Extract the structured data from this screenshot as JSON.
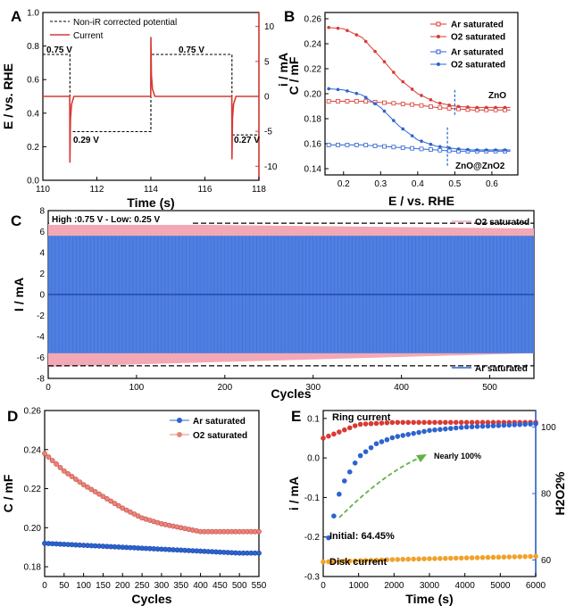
{
  "chart_data": [
    {
      "panel": "A",
      "type": "line",
      "xlabel": "Time (s)",
      "ylabel_left": "E / vs. RHE",
      "ylabel_right": "i / mA",
      "xlim": [
        110,
        118
      ],
      "ylim_left": [
        0,
        1.0
      ],
      "ylim_right": [
        -12,
        12
      ],
      "xticks": [
        110,
        112,
        114,
        116,
        118
      ],
      "yticks_left": [
        0.0,
        0.2,
        0.4,
        0.6,
        0.8,
        1.0
      ],
      "yticks_right": [
        -10,
        -5,
        0,
        5,
        10
      ],
      "legend": [
        "Non-iR corrected potential",
        "Current"
      ],
      "annotations": [
        "0.75 V",
        "0.29 V",
        "0.75 V",
        "0.27 V"
      ],
      "potential": {
        "x": [
          110,
          111,
          111,
          114,
          114,
          117,
          117,
          118
        ],
        "y": [
          0.75,
          0.75,
          0.29,
          0.29,
          0.75,
          0.75,
          0.27,
          0.27
        ]
      },
      "current_baseline_mA": 0,
      "current_spikes": [
        {
          "t": 111,
          "value": -9.5
        },
        {
          "t": 114,
          "value": 8.5
        },
        {
          "t": 117,
          "value": -9.0
        }
      ]
    },
    {
      "panel": "B",
      "type": "line",
      "xlabel": "E / vs. RHE",
      "ylabel": "C / mF",
      "xlim": [
        0.15,
        0.67
      ],
      "ylim": [
        0.135,
        0.265
      ],
      "xticks": [
        0.2,
        0.3,
        0.4,
        0.5,
        0.6
      ],
      "yticks": [
        0.14,
        0.16,
        0.18,
        0.2,
        0.22,
        0.24,
        0.26
      ],
      "labels": [
        "ZnO",
        "ZnO@ZnO2"
      ],
      "series": [
        {
          "name": "Ar saturated",
          "group": "ZnO",
          "x": [
            0.16,
            0.2,
            0.25,
            0.3,
            0.35,
            0.4,
            0.45,
            0.5,
            0.55,
            0.6,
            0.65
          ],
          "y": [
            0.194,
            0.194,
            0.194,
            0.193,
            0.192,
            0.191,
            0.189,
            0.188,
            0.187,
            0.187,
            0.187
          ]
        },
        {
          "name": "O2 saturated",
          "group": "ZnO",
          "x": [
            0.16,
            0.2,
            0.25,
            0.3,
            0.35,
            0.4,
            0.45,
            0.5,
            0.55,
            0.6,
            0.65
          ],
          "y": [
            0.253,
            0.252,
            0.245,
            0.229,
            0.212,
            0.2,
            0.193,
            0.19,
            0.189,
            0.189,
            0.189
          ]
        },
        {
          "name": "Ar saturated",
          "group": "ZnO@ZnO2",
          "x": [
            0.16,
            0.2,
            0.25,
            0.3,
            0.35,
            0.4,
            0.45,
            0.5,
            0.55,
            0.6,
            0.65
          ],
          "y": [
            0.159,
            0.159,
            0.159,
            0.158,
            0.157,
            0.156,
            0.155,
            0.154,
            0.154,
            0.154,
            0.154
          ]
        },
        {
          "name": "O2 saturated",
          "group": "ZnO@ZnO2",
          "x": [
            0.16,
            0.2,
            0.25,
            0.3,
            0.35,
            0.4,
            0.45,
            0.5,
            0.55,
            0.6,
            0.65
          ],
          "y": [
            0.204,
            0.203,
            0.199,
            0.189,
            0.174,
            0.163,
            0.158,
            0.156,
            0.155,
            0.155,
            0.155
          ]
        }
      ]
    },
    {
      "panel": "C",
      "type": "area",
      "xlabel": "Cycles",
      "ylabel": "I / mA",
      "xlim": [
        0,
        550
      ],
      "ylim": [
        -8,
        8
      ],
      "xticks": [
        0,
        100,
        200,
        300,
        400,
        500
      ],
      "yticks": [
        -8,
        -6,
        -4,
        -2,
        0,
        2,
        4,
        6,
        8
      ],
      "annotation": "High :0.75 V  -  Low: 0.25 V",
      "reference_lines": [
        6.8,
        -6.8
      ],
      "series": [
        {
          "name": "O2 saturated",
          "upper_start": 6.8,
          "upper_end": 6.3,
          "lower_start": -6.9,
          "lower_end": -5.6
        },
        {
          "name": "Ar saturated",
          "upper_start": 5.6,
          "upper_end": 5.6,
          "lower_start": -5.6,
          "lower_end": -5.6
        }
      ]
    },
    {
      "panel": "D",
      "type": "line",
      "xlabel": "Cycles",
      "ylabel": "C / mF",
      "xlim": [
        0,
        550
      ],
      "ylim": [
        0.175,
        0.26
      ],
      "xticks": [
        0,
        50,
        100,
        150,
        200,
        250,
        300,
        350,
        400,
        450,
        500,
        550
      ],
      "yticks": [
        0.18,
        0.2,
        0.22,
        0.24,
        0.26
      ],
      "series": [
        {
          "name": "Ar saturated",
          "x": [
            0,
            100,
            200,
            300,
            400,
            500,
            550
          ],
          "y": [
            0.192,
            0.191,
            0.19,
            0.189,
            0.188,
            0.187,
            0.187
          ]
        },
        {
          "name": "O2 saturated",
          "x": [
            0,
            50,
            100,
            150,
            200,
            250,
            300,
            350,
            400,
            450,
            500,
            550
          ],
          "y": [
            0.238,
            0.229,
            0.222,
            0.216,
            0.21,
            0.205,
            0.202,
            0.2,
            0.198,
            0.198,
            0.198,
            0.198
          ]
        }
      ]
    },
    {
      "panel": "E",
      "type": "scatter",
      "xlabel": "Time (s)",
      "ylabel_left": "i / mA",
      "ylabel_right": "H2O2%",
      "xlim": [
        0,
        6000
      ],
      "ylim_left": [
        -0.3,
        0.12
      ],
      "ylim_right": [
        55,
        105
      ],
      "xticks": [
        0,
        1000,
        2000,
        3000,
        4000,
        5000,
        6000
      ],
      "yticks_left": [
        -0.3,
        -0.2,
        -0.1,
        0.0,
        0.1
      ],
      "yticks_right": [
        60,
        80,
        100
      ],
      "labels": [
        "Ring current",
        "Disk current",
        "Nearly 100%",
        "Initial: 64.45%"
      ],
      "series": [
        {
          "name": "Ring current",
          "axis": "left",
          "x": [
            0,
            1000,
            2000,
            3000,
            4000,
            5000,
            6000
          ],
          "y": [
            0.05,
            0.085,
            0.09,
            0.09,
            0.09,
            0.09,
            0.09
          ]
        },
        {
          "name": "Disk current",
          "axis": "left",
          "x": [
            0,
            1000,
            2000,
            3000,
            4000,
            5000,
            6000
          ],
          "y": [
            -0.263,
            -0.26,
            -0.257,
            -0.255,
            -0.253,
            -0.251,
            -0.249
          ]
        },
        {
          "name": "H2O2%",
          "axis": "right",
          "x": [
            100,
            500,
            1000,
            1500,
            2000,
            3000,
            4000,
            5000,
            6000
          ],
          "y": [
            64.45,
            82,
            91,
            95,
            97,
            99,
            100,
            100.5,
            101
          ]
        }
      ]
    }
  ]
}
